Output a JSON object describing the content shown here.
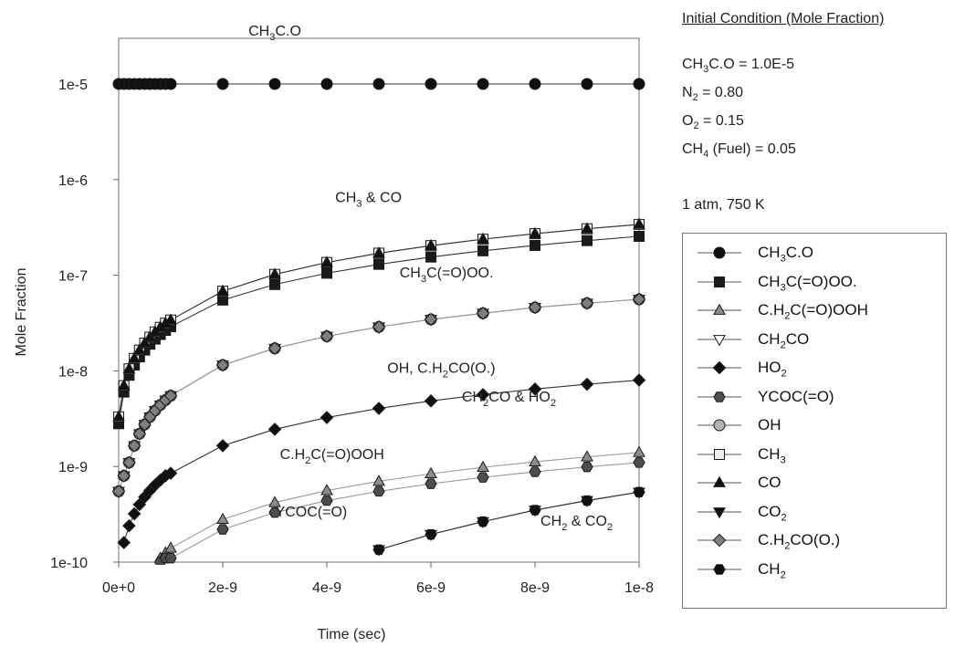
{
  "chart_data": {
    "type": "line",
    "title": "",
    "xlabel": "Time (sec)",
    "ylabel": "Mole Fraction",
    "x_scale": "linear",
    "y_scale": "log",
    "xlim": [
      0,
      1e-08
    ],
    "ylim": [
      1e-10,
      3e-05
    ],
    "x_ticks": [
      "0e+0",
      "2e-9",
      "4e-9",
      "6e-9",
      "8e-9",
      "1e-8"
    ],
    "y_ticks": [
      "1e-5",
      "1e-6",
      "1e-7",
      "1e-8",
      "1e-9",
      "1e-10"
    ],
    "grid": false,
    "legend_position": "right",
    "annotations": [
      {
        "text": "CH_{3}C.O",
        "x": 3e-09,
        "y": 3.2e-05
      },
      {
        "text": "CH_{3} & CO",
        "x": 4.8e-09,
        "y": 5.8e-07
      },
      {
        "text": "CH_{3}C(=O)OO.",
        "x": 6.3e-09,
        "y": 9.5e-08
      },
      {
        "text": "OH, C.H_{2}CO(O.)",
        "x": 6.2e-09,
        "y": 9.5e-09
      },
      {
        "text": "CH_{2}CO & HO_{2}",
        "x": 7.5e-09,
        "y": 4.8e-09
      },
      {
        "text": "C.H_{2}C(=O)OOH",
        "x": 4.1e-09,
        "y": 1.2e-09
      },
      {
        "text": "YCOC(=O)",
        "x": 3.7e-09,
        "y": 3e-10
      },
      {
        "text": "CH_{2} & CO_{2}",
        "x": 8.8e-09,
        "y": 2.4e-10
      }
    ],
    "x_points": [
      0,
      1e-10,
      2e-10,
      3e-10,
      4e-10,
      5e-10,
      6e-10,
      7e-10,
      8e-10,
      9e-10,
      1e-09,
      2e-09,
      3e-09,
      4e-09,
      5e-09,
      6e-09,
      7e-09,
      8e-09,
      9e-09,
      1e-08
    ],
    "series": [
      {
        "name": "CH_{3}C.O",
        "marker": "circle",
        "fill": "#111111",
        "y": [
          1e-05,
          1e-05,
          1e-05,
          1e-05,
          1e-05,
          1e-05,
          1e-05,
          1e-05,
          1e-05,
          1e-05,
          1e-05,
          1e-05,
          1e-05,
          1e-05,
          1e-05,
          1e-05,
          1e-05,
          1e-05,
          1e-05,
          1e-05
        ]
      },
      {
        "name": "CH_{3}C(=O)OO.",
        "marker": "square",
        "fill": "#1a1a1a",
        "y": [
          2.8e-09,
          6e-09,
          9e-09,
          1.15e-08,
          1.4e-08,
          1.65e-08,
          1.9e-08,
          2.15e-08,
          2.4e-08,
          2.65e-08,
          2.9e-08,
          5.5e-08,
          8e-08,
          1.05e-07,
          1.3e-07,
          1.55e-07,
          1.8e-07,
          2.05e-07,
          2.3e-07,
          2.55e-07
        ]
      },
      {
        "name": "C.H_{2}C(=O)OOH",
        "marker": "triangle-up",
        "fill": "#8c8c8c",
        "y": [
          null,
          null,
          null,
          null,
          null,
          null,
          null,
          null,
          1.1e-10,
          1.25e-10,
          1.4e-10,
          2.8e-10,
          4.2e-10,
          5.6e-10,
          7e-10,
          8.4e-10,
          9.8e-10,
          1.12e-09,
          1.26e-09,
          1.4e-09
        ]
      },
      {
        "name": "CH_{2}CO",
        "marker": "triangle-down-open",
        "fill": "#ffffff",
        "y": [
          5.5e-10,
          8e-10,
          1.1e-09,
          1.65e-09,
          2.2e-09,
          2.75e-09,
          3.3e-09,
          3.85e-09,
          4.4e-09,
          4.95e-09,
          5.5e-09,
          1.15e-08,
          1.72e-08,
          2.3e-08,
          2.88e-08,
          3.45e-08,
          4e-08,
          4.6e-08,
          5.1e-08,
          5.6e-08
        ]
      },
      {
        "name": "HO_{2}",
        "marker": "diamond",
        "fill": "#111111",
        "y": [
          null,
          1.6e-10,
          2.4e-10,
          3.2e-10,
          4e-10,
          4.8e-10,
          5.6e-10,
          6.4e-10,
          7.2e-10,
          8e-10,
          8.5e-10,
          1.65e-09,
          2.45e-09,
          3.25e-09,
          4.05e-09,
          4.85e-09,
          5.65e-09,
          6.45e-09,
          7.25e-09,
          8e-09
        ]
      },
      {
        "name": "YCOC(=O)",
        "marker": "hexagon",
        "fill": "#4d4d4d",
        "y": [
          null,
          null,
          null,
          null,
          null,
          null,
          null,
          null,
          1e-10,
          1.1e-10,
          1.1e-10,
          2.2e-10,
          3.3e-10,
          4.4e-10,
          5.5e-10,
          6.6e-10,
          7.7e-10,
          8.8e-10,
          9.9e-10,
          1.1e-09
        ]
      },
      {
        "name": "OH",
        "marker": "circle",
        "fill": "#b3b3b3",
        "y": [
          5.5e-10,
          8e-10,
          1.1e-09,
          1.65e-09,
          2.2e-09,
          2.75e-09,
          3.3e-09,
          3.85e-09,
          4.4e-09,
          4.95e-09,
          5.5e-09,
          1.15e-08,
          1.72e-08,
          2.3e-08,
          2.88e-08,
          3.45e-08,
          4e-08,
          4.6e-08,
          5.1e-08,
          5.6e-08
        ]
      },
      {
        "name": "CH_{3}",
        "marker": "square-open",
        "fill": "#eeeeee",
        "y": [
          3.3e-09,
          7e-09,
          1.05e-08,
          1.35e-08,
          1.65e-08,
          1.95e-08,
          2.25e-08,
          2.55e-08,
          2.85e-08,
          3.15e-08,
          3.4e-08,
          6.8e-08,
          1.02e-07,
          1.36e-07,
          1.7e-07,
          2.04e-07,
          2.38e-07,
          2.72e-07,
          3.06e-07,
          3.4e-07
        ]
      },
      {
        "name": "CO",
        "marker": "triangle-up",
        "fill": "#111111",
        "y": [
          3.3e-09,
          7e-09,
          1.05e-08,
          1.35e-08,
          1.65e-08,
          1.95e-08,
          2.25e-08,
          2.55e-08,
          2.85e-08,
          3.15e-08,
          3.4e-08,
          6.8e-08,
          1.02e-07,
          1.36e-07,
          1.7e-07,
          2.04e-07,
          2.38e-07,
          2.72e-07,
          3.06e-07,
          3.4e-07
        ]
      },
      {
        "name": "CO_{2}",
        "marker": "triangle-down",
        "fill": "#111111",
        "y": [
          null,
          null,
          null,
          null,
          null,
          null,
          null,
          null,
          null,
          null,
          null,
          null,
          null,
          null,
          1.35e-10,
          1.95e-10,
          2.65e-10,
          3.5e-10,
          4.4e-10,
          5.4e-10
        ]
      },
      {
        "name": "C.H_{2}CO(O.)",
        "marker": "diamond",
        "fill": "#7f7f7f",
        "y": [
          5.5e-10,
          8e-10,
          1.1e-09,
          1.65e-09,
          2.2e-09,
          2.75e-09,
          3.3e-09,
          3.85e-09,
          4.4e-09,
          4.95e-09,
          5.5e-09,
          1.15e-08,
          1.72e-08,
          2.3e-08,
          2.88e-08,
          3.45e-08,
          4e-08,
          4.6e-08,
          5.1e-08,
          5.6e-08
        ]
      },
      {
        "name": "CH_{2}",
        "marker": "hexagon",
        "fill": "#111111",
        "y": [
          null,
          null,
          null,
          null,
          null,
          null,
          null,
          null,
          null,
          null,
          null,
          null,
          null,
          null,
          1.35e-10,
          1.95e-10,
          2.65e-10,
          3.5e-10,
          4.4e-10,
          5.4e-10
        ]
      }
    ]
  },
  "conditions": {
    "title": "Initial Condition (Mole Fraction)",
    "lines": [
      "CH_{3}C.O = 1.0E-5",
      "N_{2} = 0.80",
      "O_{2}  = 0.15",
      "CH_{4} (Fuel) = 0.05"
    ],
    "state": "1 atm, 750 K"
  }
}
